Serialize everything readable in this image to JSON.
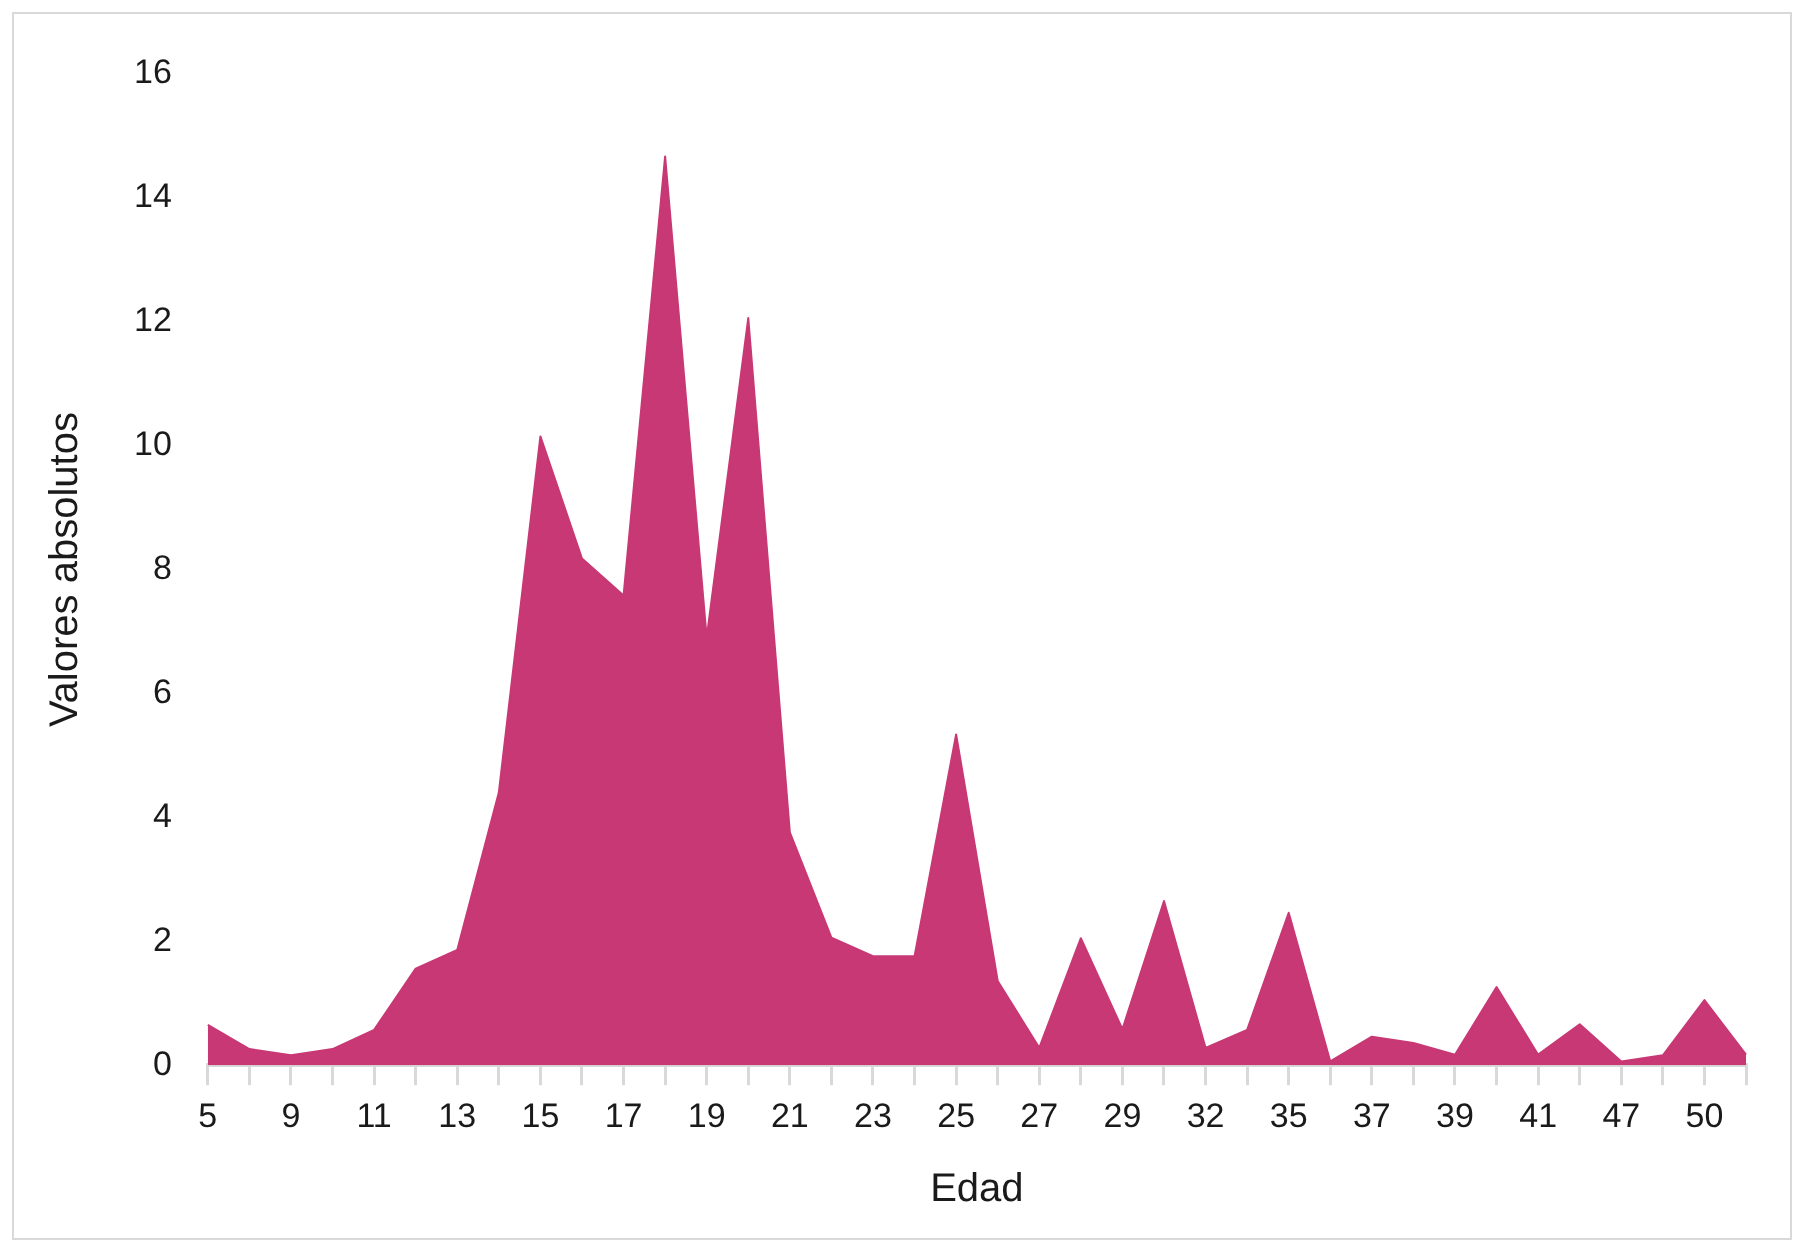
{
  "chart_data": {
    "type": "area",
    "xlabel": "Edad",
    "ylabel": "Valores absolutos",
    "categories": [
      "5",
      null,
      "9",
      null,
      "11",
      null,
      "13",
      null,
      "15",
      null,
      "17",
      null,
      "19",
      null,
      "21",
      null,
      "23",
      null,
      "25",
      null,
      "27",
      null,
      "29",
      null,
      "32",
      null,
      "35",
      null,
      "37",
      null,
      "39",
      null,
      "41",
      null,
      "47",
      null,
      "50",
      null
    ],
    "values": [
      0.65,
      0.26,
      0.16,
      0.26,
      0.57,
      1.56,
      1.86,
      4.4,
      10.15,
      8.18,
      7.58,
      14.67,
      6.9,
      12.06,
      3.76,
      2.06,
      1.76,
      1.76,
      5.34,
      1.36,
      0.28,
      2.05,
      0.58,
      2.65,
      0.28,
      0.57,
      2.46,
      0.06,
      0.46,
      0.36,
      0.17,
      1.26,
      0.17,
      0.66,
      0.06,
      0.16,
      1.05,
      0.17
    ],
    "color": "#c83874",
    "ylim": [
      0,
      16
    ],
    "yticks": [
      0,
      2,
      4,
      6,
      8,
      10,
      12,
      14,
      16
    ],
    "grid": false,
    "legend": false,
    "marker": "none"
  }
}
